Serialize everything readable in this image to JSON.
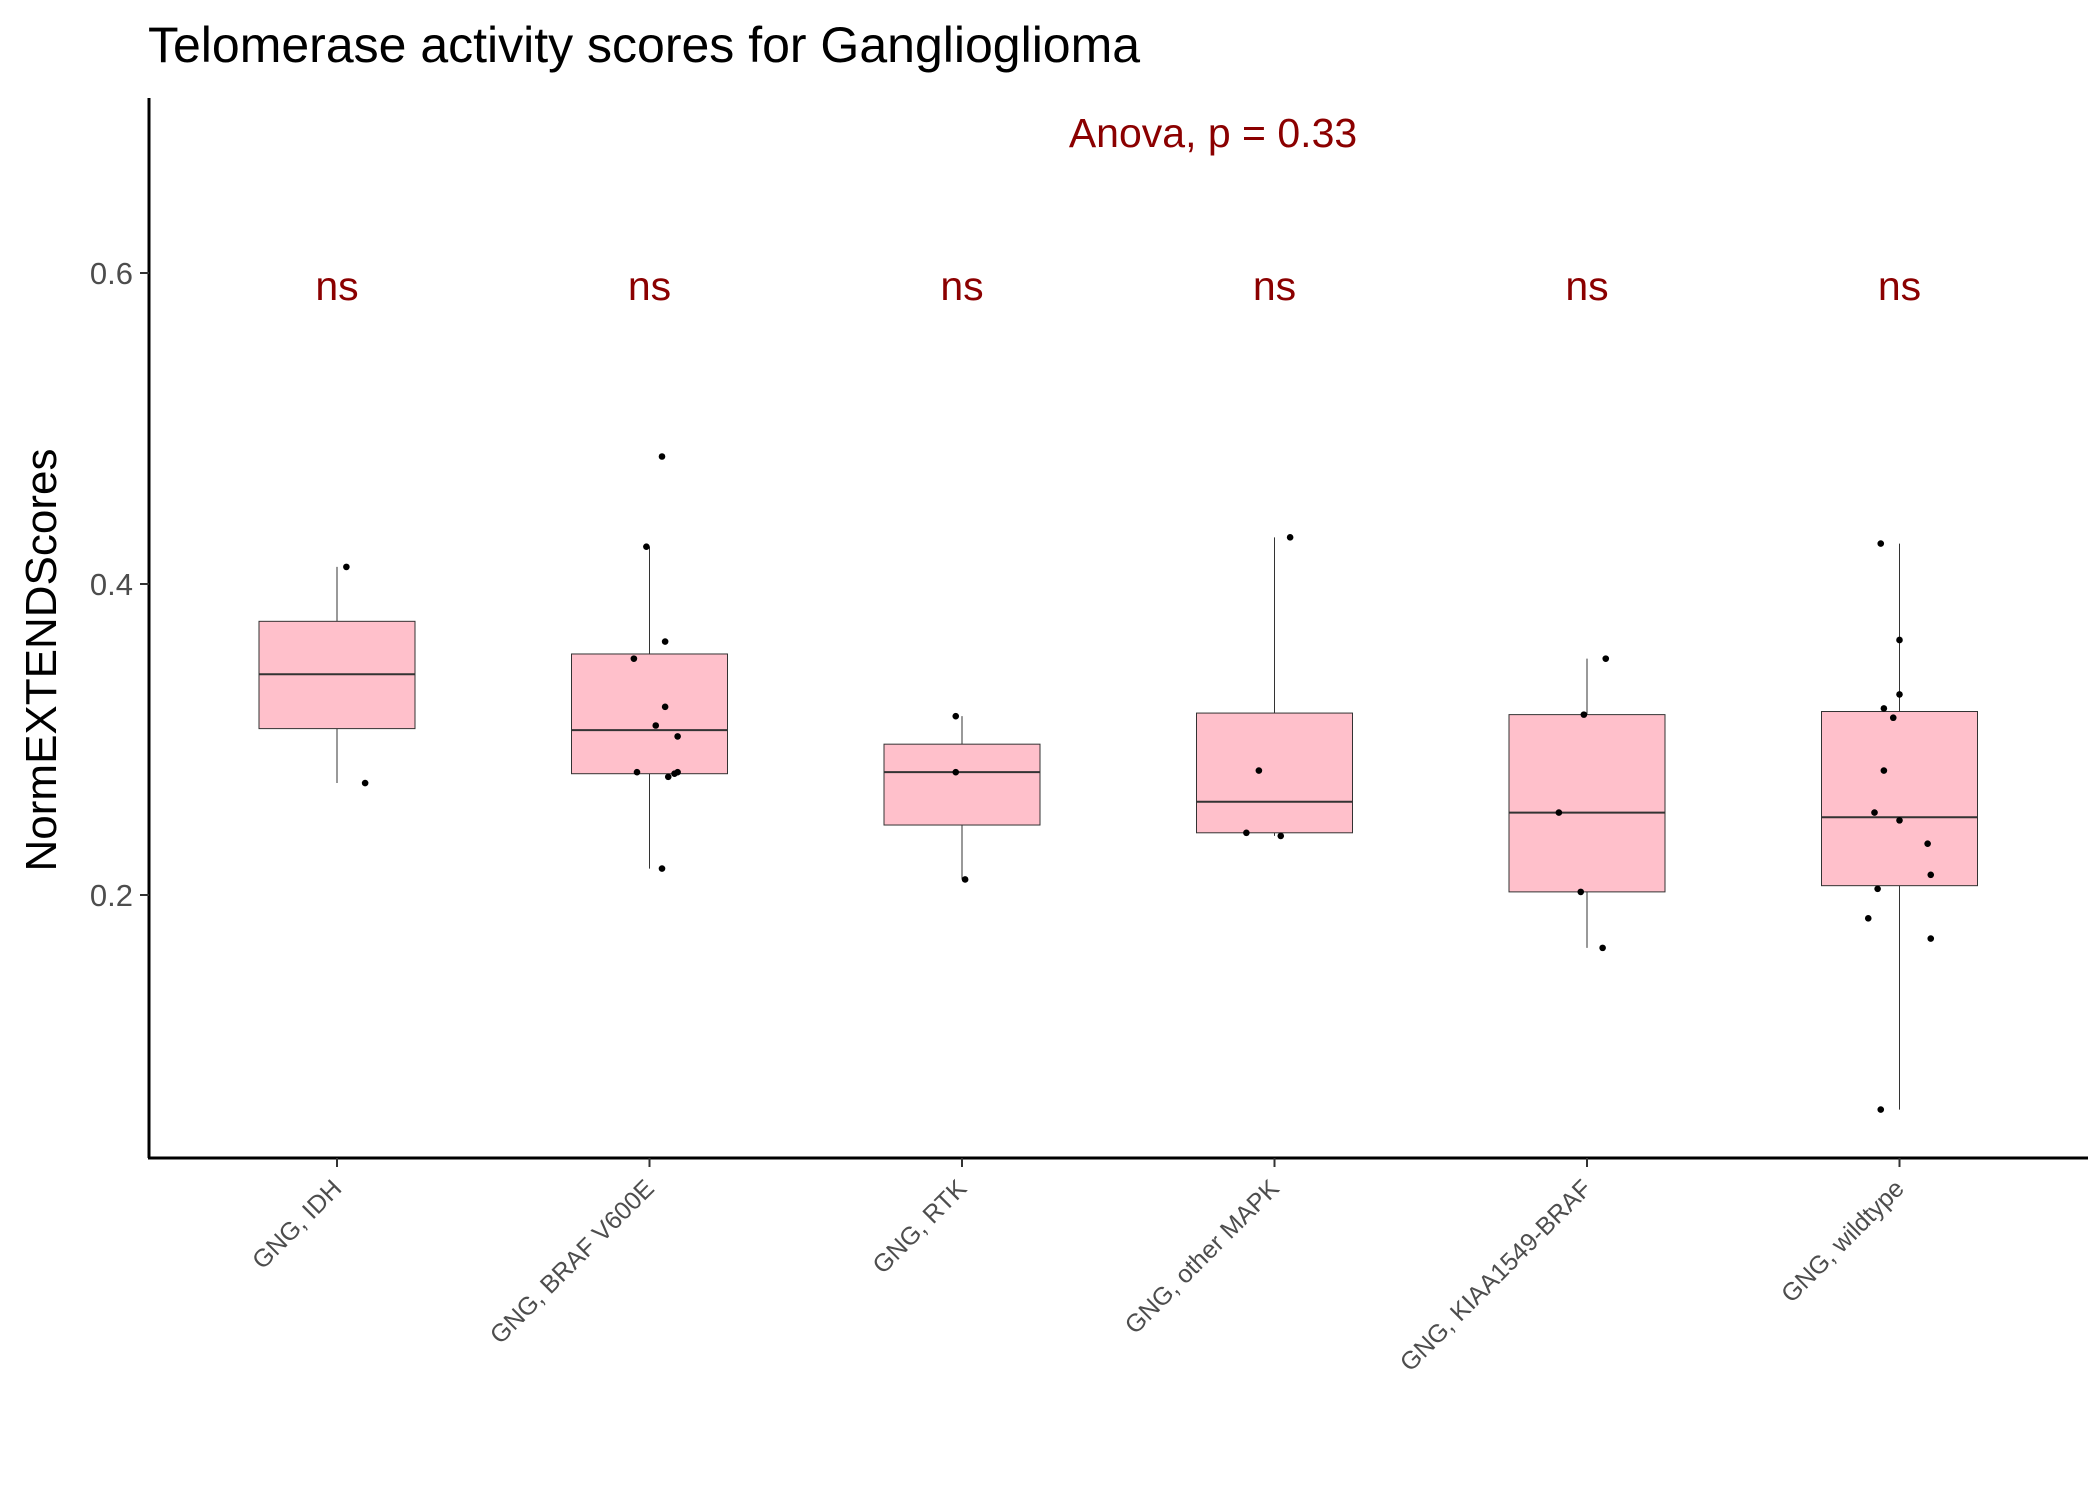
{
  "chart_data": {
    "type": "box",
    "title": "Telomerase activity scores for Ganglioglioma",
    "xlabel": "",
    "ylabel": "NormEXTENDScores",
    "ylim": [
      0.03,
      0.71
    ],
    "yticks": [
      0.2,
      0.4,
      0.6
    ],
    "ytick_labels": [
      "0.2",
      "0.4",
      "0.6"
    ],
    "grid": false,
    "annotation": "Anova, p = 0.33",
    "box_fill": "#ffc0cb",
    "box_stroke": "#333333",
    "annotation_color": "#8b0000",
    "categories": [
      "GNG, IDH",
      "GNG, BRAF V600E",
      "GNG, RTK",
      "GNG, other MAPK",
      "GNG, KIAA1549-BRAF",
      "GNG, wildtype"
    ],
    "significance": [
      "ns",
      "ns",
      "ns",
      "ns",
      "ns",
      "ns"
    ],
    "boxes": [
      {
        "q1": 0.307,
        "median": 0.342,
        "q3": 0.376,
        "whisker_low": 0.272,
        "whisker_high": 0.411
      },
      {
        "q1": 0.278,
        "median": 0.306,
        "q3": 0.355,
        "whisker_low": 0.217,
        "whisker_high": 0.424
      },
      {
        "q1": 0.245,
        "median": 0.279,
        "q3": 0.297,
        "whisker_low": 0.21,
        "whisker_high": 0.315
      },
      {
        "q1": 0.24,
        "median": 0.26,
        "q3": 0.317,
        "whisker_low": 0.238,
        "whisker_high": 0.43
      },
      {
        "q1": 0.202,
        "median": 0.253,
        "q3": 0.316,
        "whisker_low": 0.166,
        "whisker_high": 0.352
      },
      {
        "q1": 0.206,
        "median": 0.25,
        "q3": 0.318,
        "whisker_low": 0.062,
        "whisker_high": 0.426
      }
    ],
    "points": [
      {
        "category": 0,
        "offset": 0.03,
        "y": 0.411
      },
      {
        "category": 0,
        "offset": 0.09,
        "y": 0.272
      },
      {
        "category": 1,
        "offset": 0.04,
        "y": 0.482
      },
      {
        "category": 1,
        "offset": -0.01,
        "y": 0.424
      },
      {
        "category": 1,
        "offset": 0.05,
        "y": 0.363
      },
      {
        "category": 1,
        "offset": -0.05,
        "y": 0.352
      },
      {
        "category": 1,
        "offset": 0.05,
        "y": 0.321
      },
      {
        "category": 1,
        "offset": 0.02,
        "y": 0.309
      },
      {
        "category": 1,
        "offset": 0.09,
        "y": 0.302
      },
      {
        "category": 1,
        "offset": -0.04,
        "y": 0.279
      },
      {
        "category": 1,
        "offset": 0.09,
        "y": 0.279
      },
      {
        "category": 1,
        "offset": 0.08,
        "y": 0.278
      },
      {
        "category": 1,
        "offset": 0.06,
        "y": 0.276
      },
      {
        "category": 1,
        "offset": 0.04,
        "y": 0.217
      },
      {
        "category": 2,
        "offset": -0.02,
        "y": 0.315
      },
      {
        "category": 2,
        "offset": -0.02,
        "y": 0.279
      },
      {
        "category": 2,
        "offset": 0.01,
        "y": 0.21
      },
      {
        "category": 3,
        "offset": 0.05,
        "y": 0.43
      },
      {
        "category": 3,
        "offset": -0.05,
        "y": 0.28
      },
      {
        "category": 3,
        "offset": -0.09,
        "y": 0.24
      },
      {
        "category": 3,
        "offset": 0.02,
        "y": 0.238
      },
      {
        "category": 4,
        "offset": 0.06,
        "y": 0.352
      },
      {
        "category": 4,
        "offset": -0.01,
        "y": 0.316
      },
      {
        "category": 4,
        "offset": -0.09,
        "y": 0.253
      },
      {
        "category": 4,
        "offset": -0.02,
        "y": 0.202
      },
      {
        "category": 4,
        "offset": 0.05,
        "y": 0.166
      },
      {
        "category": 5,
        "offset": -0.06,
        "y": 0.426
      },
      {
        "category": 5,
        "offset": 0.0,
        "y": 0.364
      },
      {
        "category": 5,
        "offset": 0.0,
        "y": 0.329
      },
      {
        "category": 5,
        "offset": -0.05,
        "y": 0.32
      },
      {
        "category": 5,
        "offset": -0.02,
        "y": 0.314
      },
      {
        "category": 5,
        "offset": -0.05,
        "y": 0.28
      },
      {
        "category": 5,
        "offset": -0.08,
        "y": 0.253
      },
      {
        "category": 5,
        "offset": 0.0,
        "y": 0.248
      },
      {
        "category": 5,
        "offset": 0.09,
        "y": 0.233
      },
      {
        "category": 5,
        "offset": 0.1,
        "y": 0.213
      },
      {
        "category": 5,
        "offset": -0.07,
        "y": 0.204
      },
      {
        "category": 5,
        "offset": -0.1,
        "y": 0.185
      },
      {
        "category": 5,
        "offset": 0.1,
        "y": 0.172
      },
      {
        "category": 5,
        "offset": -0.06,
        "y": 0.062
      }
    ]
  }
}
